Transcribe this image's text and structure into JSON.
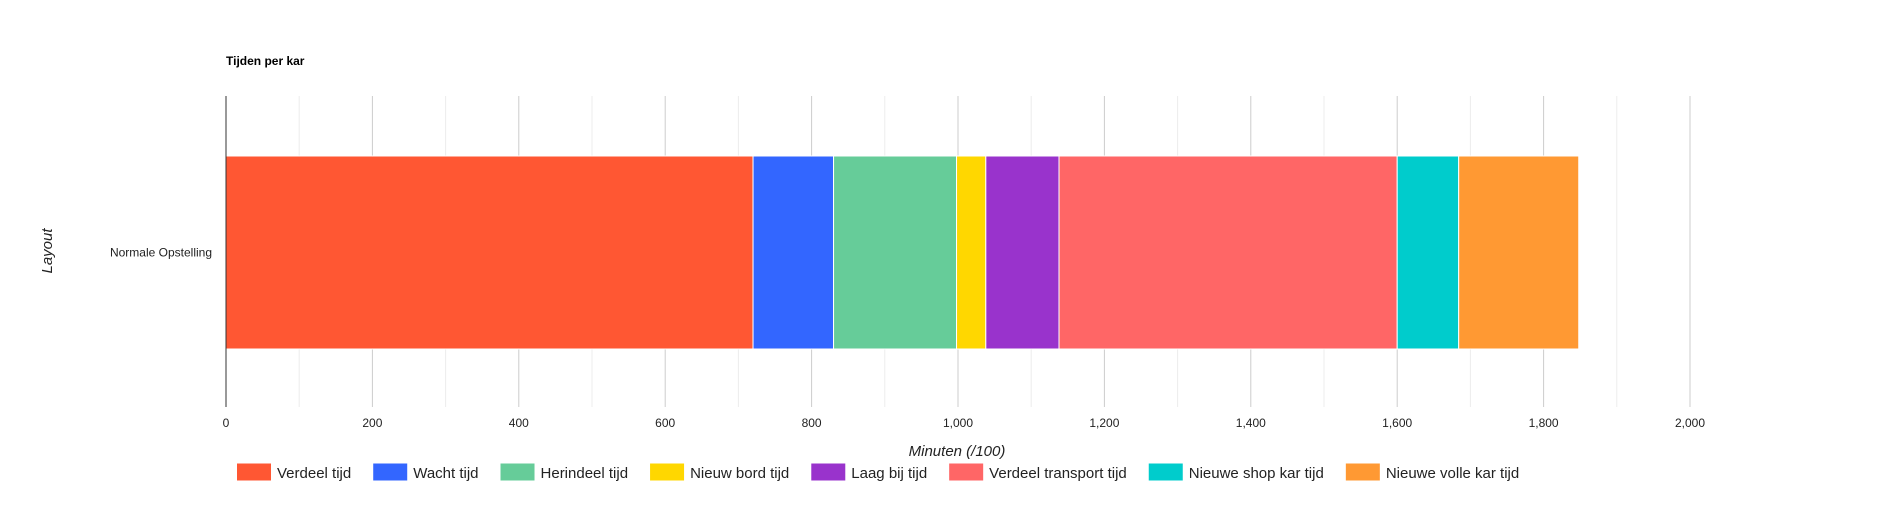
{
  "chart_data": {
    "type": "bar",
    "orientation": "horizontal",
    "stacked": true,
    "title": "Tijden per kar",
    "xlabel": "Minuten (/100)",
    "ylabel": "Layout",
    "categories": [
      "Normale Opstelling"
    ],
    "xlim": [
      0,
      2000
    ],
    "xticks": [
      0,
      200,
      400,
      600,
      800,
      1000,
      1200,
      1400,
      1600,
      1800,
      2000
    ],
    "xtick_labels": [
      "0",
      "200",
      "400",
      "600",
      "800",
      "1,000",
      "1,200",
      "1,400",
      "1,600",
      "1,800",
      "2,000"
    ],
    "grid": true,
    "legend_position": "bottom",
    "series": [
      {
        "name": "Verdeel tijd",
        "values": [
          720
        ],
        "color": "#ff5733"
      },
      {
        "name": "Wacht tijd",
        "values": [
          110
        ],
        "color": "#3366ff"
      },
      {
        "name": "Herindeel tijd",
        "values": [
          168
        ],
        "color": "#66cc99"
      },
      {
        "name": "Nieuw bord tijd",
        "values": [
          40
        ],
        "color": "#ffd700"
      },
      {
        "name": "Laag bij tijd",
        "values": [
          100
        ],
        "color": "#9933cc"
      },
      {
        "name": "Verdeel transport tijd",
        "values": [
          462
        ],
        "color": "#ff6666"
      },
      {
        "name": "Nieuwe shop kar tijd",
        "values": [
          84
        ],
        "color": "#00cccc"
      },
      {
        "name": "Nieuwe volle kar tijd",
        "values": [
          164
        ],
        "color": "#ff9933"
      }
    ]
  }
}
